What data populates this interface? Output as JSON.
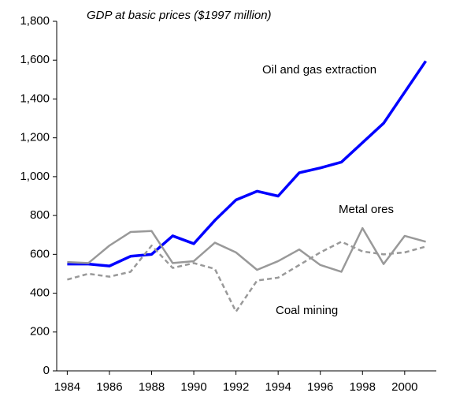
{
  "chart_data": {
    "type": "line",
    "title": "GDP at basic prices ($1997 million)",
    "x": [
      1984,
      1985,
      1986,
      1987,
      1988,
      1989,
      1990,
      1991,
      1992,
      1993,
      1994,
      1995,
      1996,
      1997,
      1998,
      1999,
      2000,
      2001
    ],
    "xlim": [
      1983.5,
      2001.5
    ],
    "xticks": [
      1984,
      1986,
      1988,
      1990,
      1992,
      1994,
      1996,
      1998,
      2000
    ],
    "ylim": [
      0,
      1800
    ],
    "yticks": [
      0,
      200,
      400,
      600,
      800,
      {
        "value": 1000,
        "label": "1,000"
      },
      {
        "value": 1200,
        "label": "1,200"
      },
      {
        "value": 1400,
        "label": "1,400"
      },
      {
        "value": 1600,
        "label": "1,600"
      },
      {
        "value": 1800,
        "label": "1,800"
      }
    ],
    "grid": false,
    "series": [
      {
        "name": "Oil and gas extraction",
        "color": "#0000ff",
        "style": "solid",
        "values": [
          550,
          550,
          540,
          590,
          600,
          695,
          655,
          775,
          880,
          925,
          900,
          1020,
          1045,
          1075,
          1175,
          1275,
          1435,
          1595
        ]
      },
      {
        "name": "Metal ores",
        "color": "#999999",
        "style": "solid",
        "values": [
          560,
          555,
          645,
          715,
          720,
          555,
          565,
          660,
          610,
          520,
          565,
          625,
          545,
          510,
          735,
          550,
          695,
          665
        ]
      },
      {
        "name": "Coal mining",
        "color": "#999999",
        "style": "dashed",
        "values": [
          470,
          500,
          485,
          510,
          645,
          530,
          555,
          525,
          305,
          465,
          480,
          545,
          610,
          665,
          615,
          600,
          610,
          640
        ]
      }
    ]
  }
}
